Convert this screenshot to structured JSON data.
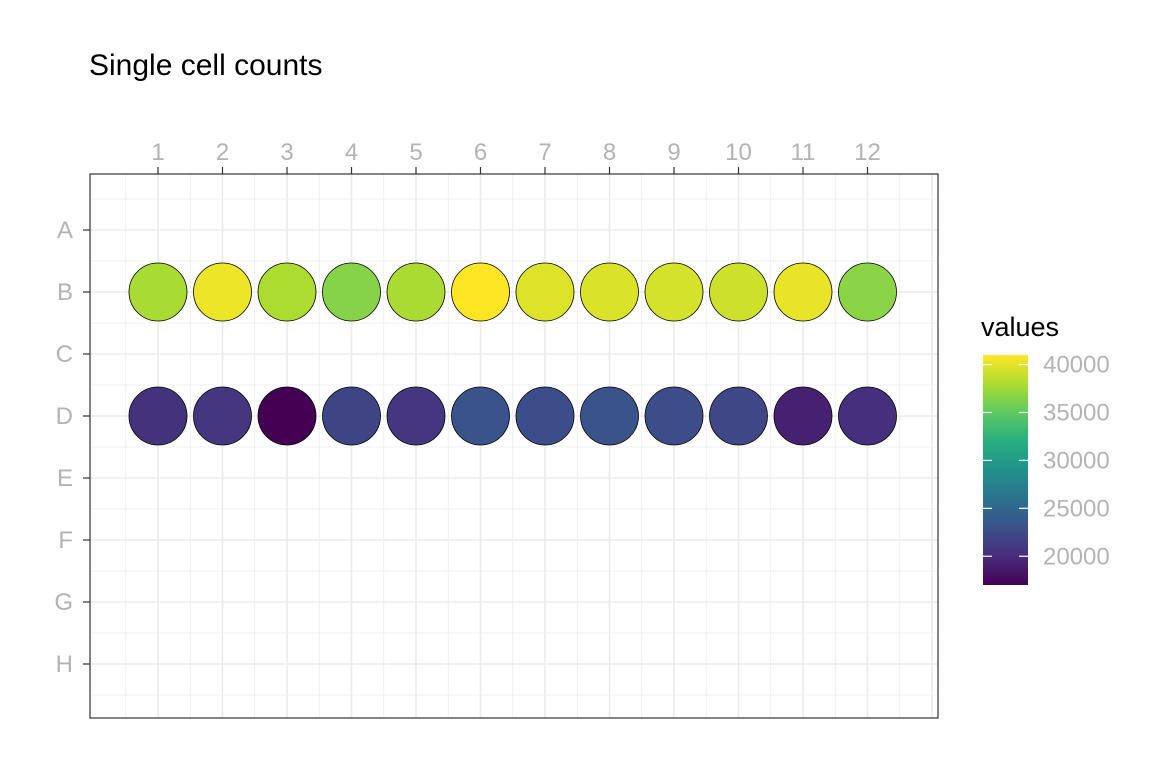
{
  "chart_data": {
    "type": "scatter",
    "title": "Single cell counts",
    "x_ticks": [
      "1",
      "2",
      "3",
      "4",
      "5",
      "6",
      "7",
      "8",
      "9",
      "10",
      "11",
      "12"
    ],
    "y_ticks": [
      "A",
      "B",
      "C",
      "D",
      "E",
      "F",
      "G",
      "H"
    ],
    "x_position": "top",
    "grid": true,
    "colormap": "viridis",
    "legend": {
      "title": "values",
      "placement": "right",
      "min": 17000,
      "max": 41000,
      "breaks": [
        20000,
        25000,
        30000,
        35000,
        40000
      ],
      "break_labels": [
        "20000",
        "25000",
        "30000",
        "35000",
        "40000"
      ]
    },
    "points": [
      {
        "row": "B",
        "col": 1,
        "value": 37800
      },
      {
        "row": "B",
        "col": 2,
        "value": 40400
      },
      {
        "row": "B",
        "col": 3,
        "value": 38000
      },
      {
        "row": "B",
        "col": 4,
        "value": 36500
      },
      {
        "row": "B",
        "col": 5,
        "value": 37900
      },
      {
        "row": "B",
        "col": 6,
        "value": 41000
      },
      {
        "row": "B",
        "col": 7,
        "value": 39800
      },
      {
        "row": "B",
        "col": 8,
        "value": 39700
      },
      {
        "row": "B",
        "col": 9,
        "value": 39500
      },
      {
        "row": "B",
        "col": 10,
        "value": 39200
      },
      {
        "row": "B",
        "col": 11,
        "value": 40200
      },
      {
        "row": "B",
        "col": 12,
        "value": 36700
      },
      {
        "row": "D",
        "col": 1,
        "value": 20400
      },
      {
        "row": "D",
        "col": 2,
        "value": 20800
      },
      {
        "row": "D",
        "col": 3,
        "value": 17000
      },
      {
        "row": "D",
        "col": 4,
        "value": 21900
      },
      {
        "row": "D",
        "col": 5,
        "value": 20800
      },
      {
        "row": "D",
        "col": 6,
        "value": 23200
      },
      {
        "row": "D",
        "col": 7,
        "value": 22700
      },
      {
        "row": "D",
        "col": 8,
        "value": 23200
      },
      {
        "row": "D",
        "col": 9,
        "value": 22600
      },
      {
        "row": "D",
        "col": 10,
        "value": 22100
      },
      {
        "row": "D",
        "col": 11,
        "value": 19200
      },
      {
        "row": "D",
        "col": 12,
        "value": 20200
      }
    ]
  }
}
